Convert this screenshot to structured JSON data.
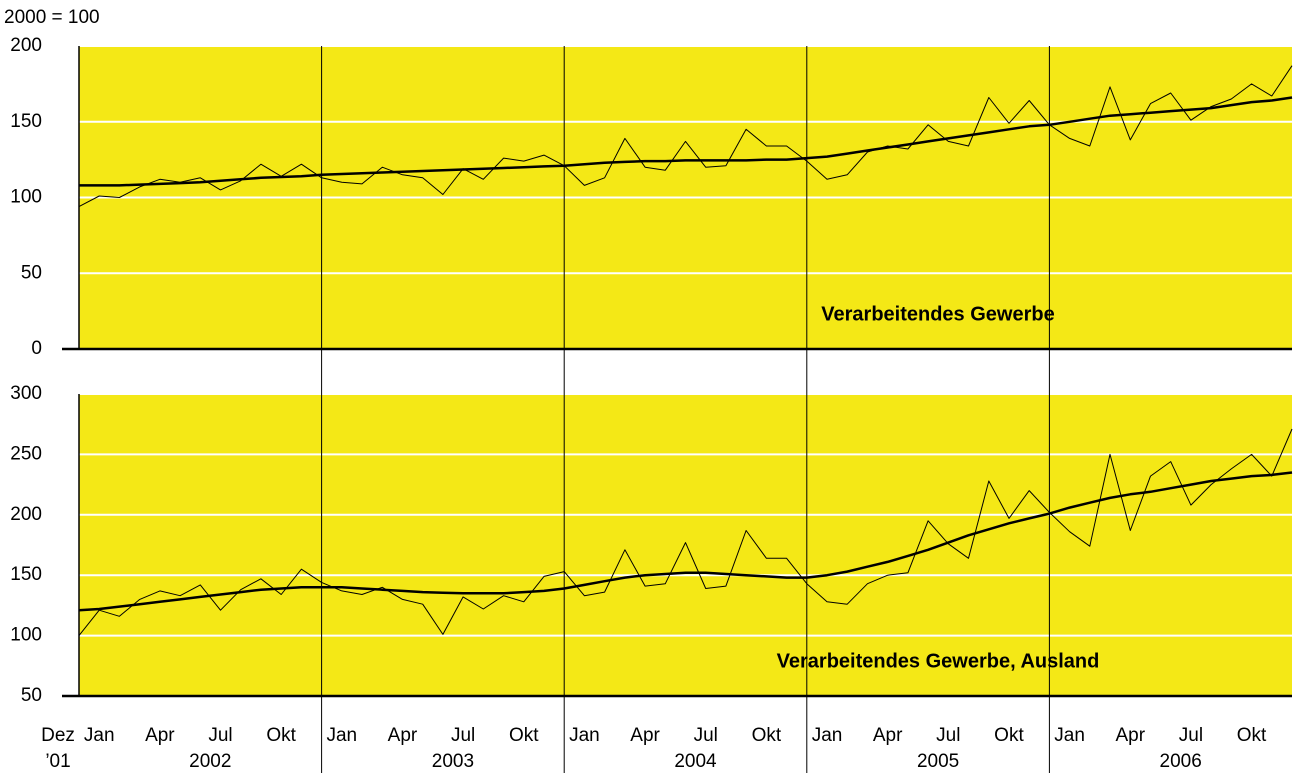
{
  "chart_data": [
    {
      "type": "line",
      "y_label": "2000 = 100",
      "annotation": "Verarbeitendes Gewerbe",
      "ylim": [
        0,
        200
      ],
      "yticks": [
        0,
        50,
        100,
        150,
        200
      ],
      "grid": true,
      "background": "#f4e816",
      "series": [
        {
          "color": "#000000",
          "width": 1,
          "values": [
            94,
            101,
            100,
            107,
            112,
            110,
            113,
            105,
            111,
            122,
            114,
            122,
            113,
            110,
            109,
            120,
            115,
            113,
            102,
            119,
            112,
            126,
            124,
            128,
            121,
            108,
            113,
            139,
            120,
            118,
            137,
            120,
            121,
            145,
            134,
            134,
            124,
            112,
            115,
            130,
            134,
            132,
            148,
            137,
            134,
            166,
            149,
            164,
            148,
            139,
            134,
            173,
            138,
            162,
            169,
            151,
            160,
            165,
            175,
            167,
            187
          ]
        },
        {
          "color": "#000000",
          "width": 2.5,
          "values": [
            108,
            108,
            108,
            108.5,
            109,
            109.5,
            110,
            111,
            112,
            113,
            113.5,
            114,
            115,
            115.5,
            116,
            116.5,
            117,
            117.5,
            118,
            118.5,
            119,
            119.5,
            120,
            120.5,
            121,
            122,
            123,
            123.5,
            124,
            124,
            124.5,
            124.5,
            124.5,
            124.5,
            125,
            125,
            126,
            127,
            129,
            131,
            133,
            135,
            137,
            139,
            141,
            143,
            145,
            147,
            148,
            150,
            152,
            154,
            155,
            156,
            157,
            158,
            159,
            161,
            163,
            164,
            166
          ]
        }
      ]
    },
    {
      "type": "line",
      "annotation": "Verarbeitendes Gewerbe, Ausland",
      "ylim": [
        50,
        300
      ],
      "yticks": [
        50,
        100,
        150,
        200,
        250,
        300
      ],
      "grid": true,
      "background": "#f4e816",
      "categories": [
        "Dez",
        "Jan",
        null,
        null,
        "Apr",
        null,
        null,
        "Jul",
        null,
        null,
        "Okt",
        null,
        null,
        "Jan",
        null,
        null,
        "Apr",
        null,
        null,
        "Jul",
        null,
        null,
        "Okt",
        null,
        null,
        "Jan",
        null,
        null,
        "Apr",
        null,
        null,
        "Jul",
        null,
        null,
        "Okt",
        null,
        null,
        "Jan",
        null,
        null,
        "Apr",
        null,
        null,
        "Jul",
        null,
        null,
        "Okt",
        null,
        null,
        "Jan",
        null,
        null,
        "Apr",
        null,
        null,
        "Jul",
        null,
        null,
        "Okt",
        null,
        null
      ],
      "start_year_label": "’01",
      "year_labels": [
        "2002",
        "2003",
        "2004",
        "2005",
        "2006"
      ],
      "series": [
        {
          "color": "#000000",
          "width": 1,
          "values": [
            100,
            121,
            116,
            130,
            137,
            133,
            142,
            121,
            138,
            147,
            134,
            155,
            144,
            137,
            134,
            140,
            130,
            126,
            101,
            132,
            122,
            133,
            128,
            149,
            153,
            133,
            136,
            171,
            141,
            143,
            177,
            139,
            141,
            187,
            164,
            164,
            143,
            128,
            126,
            143,
            150,
            152,
            195,
            176,
            164,
            228,
            197,
            220,
            202,
            186,
            174,
            250,
            187,
            232,
            244,
            208,
            225,
            238,
            250,
            232,
            271
          ]
        },
        {
          "color": "#000000",
          "width": 2.5,
          "values": [
            121,
            122,
            124,
            126,
            128,
            130,
            132,
            134,
            136,
            138,
            139,
            140,
            140,
            140,
            139,
            138,
            137,
            136,
            135.5,
            135,
            135,
            135,
            136,
            137,
            139,
            142,
            145,
            148,
            150,
            151,
            152,
            152,
            151,
            150,
            149,
            148,
            148,
            150,
            153,
            157,
            161,
            166,
            171,
            177,
            183,
            188,
            193,
            197,
            201,
            206,
            210,
            214,
            217,
            219,
            222,
            225,
            228,
            230,
            232,
            233,
            235
          ]
        }
      ]
    }
  ]
}
